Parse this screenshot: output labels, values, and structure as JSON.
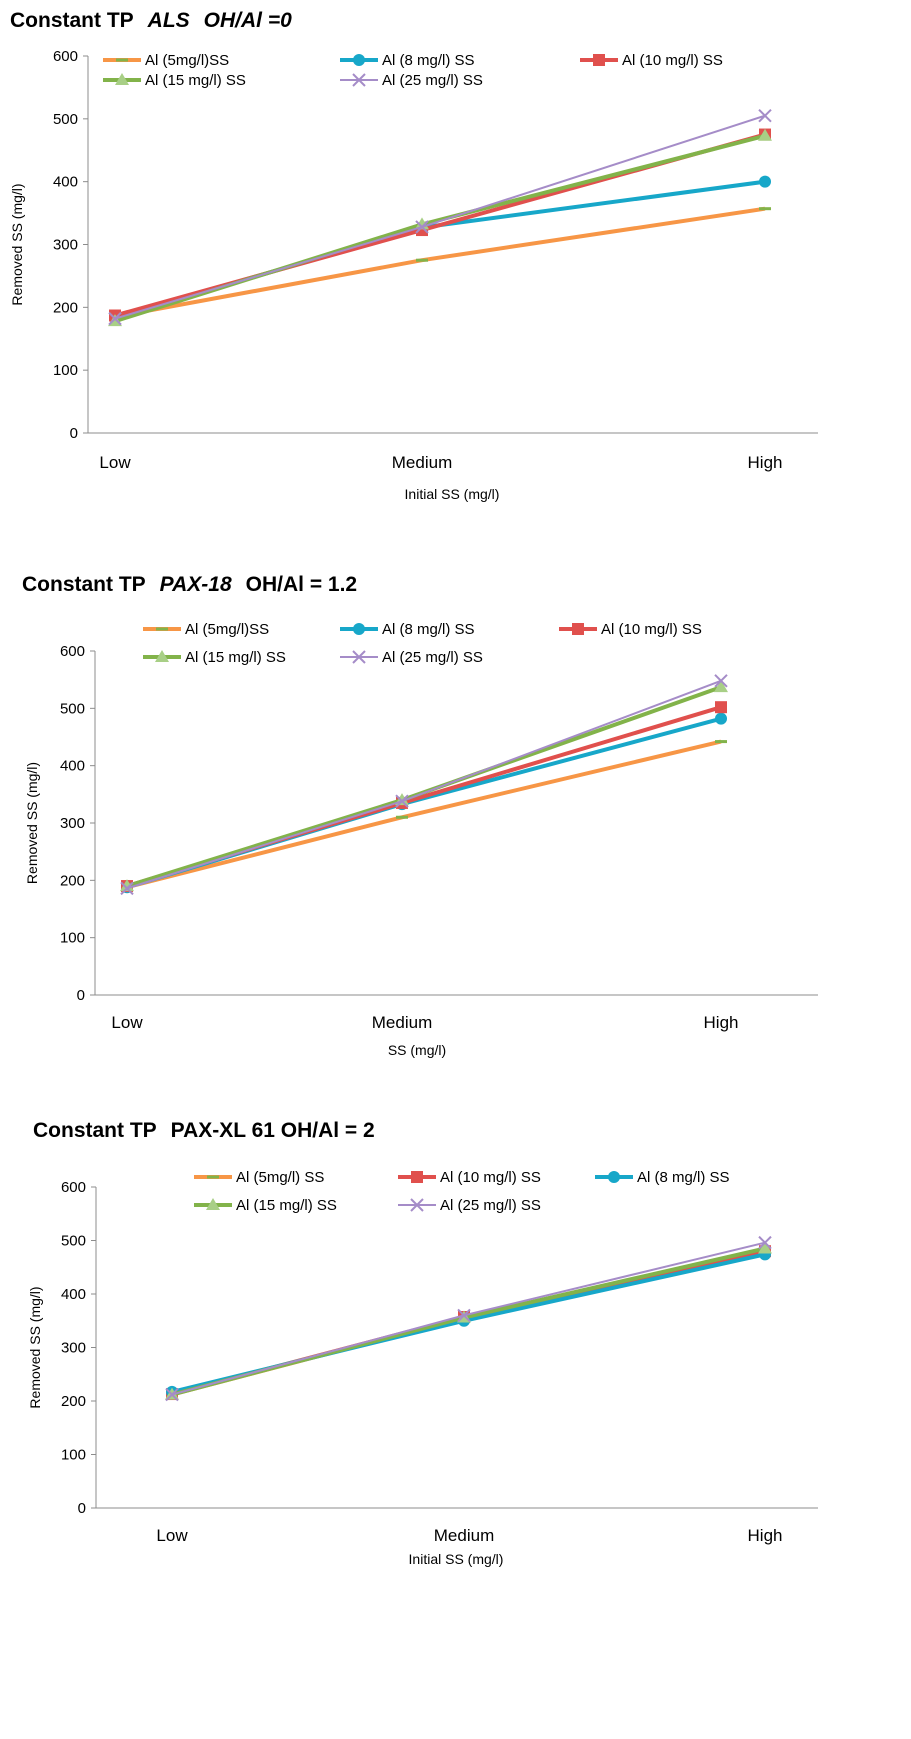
{
  "colors": {
    "orange": "#F79646",
    "cyan": "#17A7C9",
    "red": "#E0504D",
    "green": "#82B34A",
    "light_green": "#A8CF86",
    "purple": "#A58CC8",
    "axis": "#8C8C8C",
    "text": "#000000"
  },
  "chart_data": [
    {
      "type": "line",
      "title_main": "Constant TP",
      "title_italic": "ALS",
      "title_suffix": "OH/Al =0",
      "title_suffix_italic": true,
      "categories": [
        "Low",
        "Medium",
        "High"
      ],
      "xlabel": "Initial SS (mg/l)",
      "ylabel": "Removed SS (mg/l)",
      "ylim": [
        0,
        600
      ],
      "yticks": [
        0,
        100,
        200,
        300,
        400,
        500,
        600
      ],
      "grid": false,
      "legend_position": "top",
      "series": [
        {
          "name": "Al (5mg/l)SS",
          "values": [
            185,
            275,
            357
          ],
          "color": "orange",
          "marker": "dash"
        },
        {
          "name": "Al (8 mg/l) SS",
          "values": [
            183,
            327,
            400
          ],
          "color": "cyan",
          "marker": "circle"
        },
        {
          "name": "Al (10 mg/l) SS",
          "values": [
            187,
            323,
            475
          ],
          "color": "red",
          "marker": "square"
        },
        {
          "name": "Al (15 mg/l) SS",
          "values": [
            178,
            332,
            473
          ],
          "color": "green",
          "marker": "triangle"
        },
        {
          "name": "Al (25 mg/l) SS",
          "values": [
            182,
            328,
            505
          ],
          "color": "purple",
          "marker": "x"
        }
      ]
    },
    {
      "type": "line",
      "title_main": "Constant TP",
      "title_italic": "PAX-18",
      "title_suffix": "OH/Al = 1.2",
      "title_suffix_italic": false,
      "categories": [
        "Low",
        "Medium",
        "High"
      ],
      "xlabel": "SS (mg/l)",
      "ylabel": "Removed SS (mg/l)",
      "ylim": [
        0,
        600
      ],
      "yticks": [
        0,
        100,
        200,
        300,
        400,
        500,
        600
      ],
      "grid": false,
      "legend_position": "top",
      "series": [
        {
          "name": "Al (5mg/l)SS",
          "values": [
            188,
            310,
            442
          ],
          "color": "orange",
          "marker": "dash"
        },
        {
          "name": "Al (8 mg/l) SS",
          "values": [
            188,
            333,
            482
          ],
          "color": "cyan",
          "marker": "circle"
        },
        {
          "name": "Al (10 mg/l) SS",
          "values": [
            190,
            335,
            502
          ],
          "color": "red",
          "marker": "square"
        },
        {
          "name": "Al (15 mg/l) SS",
          "values": [
            190,
            340,
            537
          ],
          "color": "green",
          "marker": "triangle"
        },
        {
          "name": "Al (25 mg/l) SS",
          "values": [
            186,
            338,
            548
          ],
          "color": "purple",
          "marker": "x"
        }
      ]
    },
    {
      "type": "line",
      "title_main": "Constant TP",
      "title_italic": "",
      "title_suffix": "PAX-XL 61  OH/Al = 2",
      "title_suffix_italic": false,
      "categories": [
        "Low",
        "Medium",
        "High"
      ],
      "xlabel": "Initial SS (mg/l)",
      "ylabel": "Removed SS (mg/l)",
      "ylim": [
        0,
        600
      ],
      "yticks": [
        0,
        100,
        200,
        300,
        400,
        500,
        600
      ],
      "grid": false,
      "legend_position": "top",
      "series": [
        {
          "name": "Al (5mg/l) SS",
          "values": [
            212,
            355,
            476
          ],
          "color": "orange",
          "marker": "dash"
        },
        {
          "name": "Al (10 mg/l) SS",
          "values": [
            213,
            357,
            480
          ],
          "color": "red",
          "marker": "square"
        },
        {
          "name": "Al (8 mg/l) SS",
          "values": [
            217,
            350,
            474
          ],
          "color": "cyan",
          "marker": "circle"
        },
        {
          "name": "Al (15 mg/l) SS",
          "values": [
            212,
            356,
            485
          ],
          "color": "green",
          "marker": "triangle"
        },
        {
          "name": "Al (25 mg/l) SS",
          "values": [
            212,
            360,
            496
          ],
          "color": "purple",
          "marker": "x"
        }
      ]
    }
  ]
}
